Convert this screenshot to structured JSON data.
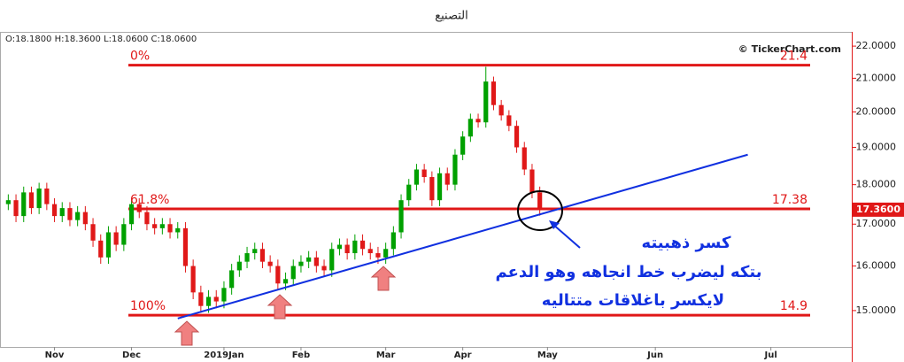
{
  "chart_data": {
    "type": "candlestick",
    "title": "التصنيع",
    "ohlc_info": "O:18.1800  H:18.3600  L:18.0600  C:18.0600",
    "source": "© TickerChart.com",
    "log_scale": true,
    "grid": false,
    "up_color": "#00a000",
    "down_color": "#e01818",
    "ylim": [
      14.23,
      22.43
    ],
    "yticks": [
      {
        "value": 15,
        "label": "15.0000"
      },
      {
        "value": 16,
        "label": "16.0000"
      },
      {
        "value": 17,
        "label": "17.0000"
      },
      {
        "value": 18,
        "label": "18.0000"
      },
      {
        "value": 19,
        "label": "19.0000"
      },
      {
        "value": 20,
        "label": "20.0000"
      },
      {
        "value": 21,
        "label": "21.0000"
      },
      {
        "value": 22,
        "label": "22.0000"
      }
    ],
    "last_price": {
      "value": 17.36,
      "label": "17.3600"
    },
    "categories": [
      null,
      null,
      null,
      null,
      null,
      null,
      "Nov",
      null,
      null,
      null,
      null,
      null,
      null,
      null,
      null,
      null,
      "Dec",
      null,
      null,
      null,
      null,
      null,
      null,
      null,
      null,
      null,
      null,
      null,
      "2019Jan",
      null,
      null,
      null,
      null,
      null,
      null,
      null,
      null,
      null,
      "Feb",
      null,
      null,
      null,
      null,
      null,
      null,
      null,
      null,
      null,
      null,
      "Mar",
      null,
      null,
      null,
      null,
      null,
      null,
      null,
      null,
      null,
      "Apr",
      null,
      null,
      null,
      null,
      null,
      null,
      null,
      null,
      null,
      null,
      "May",
      null,
      null,
      null,
      null,
      null,
      null,
      null,
      null,
      null,
      null,
      null,
      null,
      null,
      "Jun",
      null,
      null,
      null,
      null,
      null,
      null,
      null,
      null,
      null,
      null,
      null,
      null,
      null,
      null,
      "Jul",
      null,
      null,
      null,
      null,
      null,
      null,
      null,
      null,
      null,
      null
    ],
    "open": [
      17.5,
      17.6,
      17.2,
      17.8,
      17.4,
      17.9,
      17.5,
      17.2,
      17.4,
      17.1,
      17.3,
      17.0,
      16.6,
      16.2,
      16.8,
      16.5,
      17.0,
      17.5,
      17.3,
      17.0,
      16.9,
      17.0,
      16.8,
      16.9,
      16.0,
      15.4,
      15.1,
      15.3,
      15.2,
      15.5,
      15.9,
      16.1,
      16.3,
      16.4,
      16.1,
      16.0,
      15.6,
      15.7,
      16.0,
      16.1,
      16.2,
      16.0,
      15.9,
      16.4,
      16.5,
      16.3,
      16.6,
      16.4,
      16.3,
      16.2,
      16.4,
      16.8,
      17.6,
      18.0,
      18.4,
      18.2,
      17.6,
      18.3,
      18.0,
      18.8,
      19.3,
      19.8,
      19.7,
      20.9,
      20.2,
      19.9,
      19.6,
      19.0,
      18.4,
      17.8,
      null,
      null,
      null,
      null,
      null,
      null,
      null,
      null,
      null,
      null,
      null,
      null,
      null,
      null,
      null,
      null,
      null,
      null,
      null,
      null,
      null,
      null,
      null,
      null,
      null,
      null,
      null,
      null,
      null,
      null,
      null,
      null,
      null,
      null,
      null,
      null,
      null,
      null,
      null,
      null
    ],
    "high": [
      17.75,
      17.75,
      17.95,
      17.95,
      18.05,
      18.05,
      17.65,
      17.55,
      17.55,
      17.45,
      17.45,
      17.15,
      16.75,
      16.95,
      16.95,
      17.15,
      17.65,
      17.65,
      17.45,
      17.15,
      17.15,
      17.15,
      17.05,
      17.05,
      16.15,
      15.55,
      15.45,
      15.45,
      15.65,
      16.05,
      16.25,
      16.45,
      16.55,
      16.55,
      16.25,
      16.15,
      15.85,
      16.15,
      16.25,
      16.35,
      16.35,
      16.15,
      16.55,
      16.65,
      16.65,
      16.75,
      16.75,
      16.55,
      16.45,
      16.55,
      16.95,
      17.75,
      18.15,
      18.55,
      18.55,
      18.35,
      18.45,
      18.45,
      18.95,
      19.45,
      19.95,
      19.95,
      21.35,
      21.05,
      20.35,
      20.05,
      19.75,
      19.15,
      18.55,
      17.95,
      null,
      null,
      null,
      null,
      null,
      null,
      null,
      null,
      null,
      null,
      null,
      null,
      null,
      null,
      null,
      null,
      null,
      null,
      null,
      null,
      null,
      null,
      null,
      null,
      null,
      null,
      null,
      null,
      null,
      null,
      null,
      null,
      null,
      null,
      null,
      null,
      null,
      null,
      null,
      null
    ],
    "low": [
      17.35,
      17.05,
      17.05,
      17.25,
      17.25,
      17.35,
      17.05,
      17.05,
      16.95,
      16.95,
      16.85,
      16.45,
      16.05,
      16.05,
      16.35,
      16.35,
      16.85,
      17.15,
      16.85,
      16.75,
      16.75,
      16.65,
      16.65,
      15.85,
      15.25,
      14.95,
      14.95,
      15.05,
      15.05,
      15.35,
      15.75,
      15.95,
      16.15,
      15.95,
      15.85,
      15.45,
      15.45,
      15.55,
      15.85,
      15.95,
      15.85,
      15.75,
      15.75,
      16.25,
      16.15,
      16.15,
      16.25,
      16.15,
      16.05,
      16.05,
      16.25,
      16.65,
      17.45,
      17.85,
      18.05,
      17.45,
      17.45,
      17.85,
      17.85,
      18.65,
      19.15,
      19.55,
      19.55,
      20.05,
      19.75,
      19.45,
      18.85,
      18.25,
      17.65,
      17.21,
      null,
      null,
      null,
      null,
      null,
      null,
      null,
      null,
      null,
      null,
      null,
      null,
      null,
      null,
      null,
      null,
      null,
      null,
      null,
      null,
      null,
      null,
      null,
      null,
      null,
      null,
      null,
      null,
      null,
      null,
      null,
      null,
      null,
      null,
      null,
      null,
      null,
      null,
      null,
      null
    ],
    "close": [
      17.6,
      17.2,
      17.8,
      17.4,
      17.9,
      17.5,
      17.2,
      17.4,
      17.1,
      17.3,
      17.0,
      16.6,
      16.2,
      16.8,
      16.5,
      17.0,
      17.5,
      17.3,
      17.0,
      16.9,
      17.0,
      16.8,
      16.9,
      16.0,
      15.4,
      15.1,
      15.3,
      15.2,
      15.5,
      15.9,
      16.1,
      16.3,
      16.4,
      16.1,
      16.0,
      15.6,
      15.7,
      16.0,
      16.1,
      16.2,
      16.0,
      15.9,
      16.4,
      16.5,
      16.3,
      16.6,
      16.4,
      16.3,
      16.2,
      16.4,
      16.8,
      17.6,
      18.0,
      18.4,
      18.2,
      17.6,
      18.3,
      18.0,
      18.8,
      19.3,
      19.8,
      19.7,
      20.9,
      20.2,
      19.9,
      19.6,
      19.0,
      18.4,
      17.8,
      17.36,
      null,
      null,
      null,
      null,
      null,
      null,
      null,
      null,
      null,
      null,
      null,
      null,
      null,
      null,
      null,
      null,
      null,
      null,
      null,
      null,
      null,
      null,
      null,
      null,
      null,
      null,
      null,
      null,
      null,
      null,
      null,
      null,
      null,
      null,
      null,
      null,
      null,
      null,
      null,
      null
    ],
    "fib_levels": [
      {
        "label": "0%",
        "value": 21.4
      },
      {
        "label": "61.8%",
        "value": 17.38
      },
      {
        "label": "100%",
        "value": 14.9
      }
    ],
    "fib_color": "#e01818",
    "trendline": {
      "x": [
        22,
        96
      ],
      "y": [
        14.83,
        18.8
      ],
      "color": "#1030e0"
    },
    "annotation": [
      "كسر ذهبيته",
      "بتكه ليضرب خط انجاهه وهو الدعم",
      "لايكسر باغلاقات متتاليه"
    ]
  }
}
